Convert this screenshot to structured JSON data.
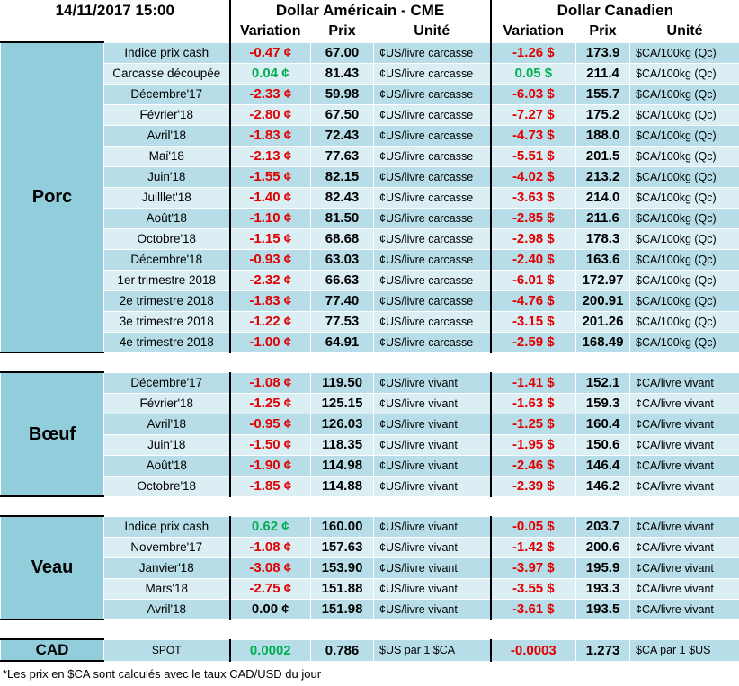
{
  "header": {
    "timestamp": "14/11/2017 15:00",
    "usd_title": "Dollar Américain - CME",
    "cad_title": "Dollar Canadien",
    "columns": [
      "Variation",
      "Prix",
      "Unité",
      "Variation",
      "Prix",
      "Unité"
    ]
  },
  "groups": [
    {
      "label": "Porc",
      "rows": [
        [
          "Indice prix cash",
          "-0.47 ¢",
          "67.00",
          "¢US/livre carcasse",
          "-1.26 $",
          "173.9",
          "$CA/100kg (Qc)"
        ],
        [
          "Carcasse découpée",
          "0.04 ¢",
          "81.43",
          "¢US/livre carcasse",
          "0.05 $",
          "211.4",
          "$CA/100kg (Qc)"
        ],
        [
          "Décembre'17",
          "-2.33 ¢",
          "59.98",
          "¢US/livre carcasse",
          "-6.03 $",
          "155.7",
          "$CA/100kg (Qc)"
        ],
        [
          "Février'18",
          "-2.80 ¢",
          "67.50",
          "¢US/livre carcasse",
          "-7.27 $",
          "175.2",
          "$CA/100kg (Qc)"
        ],
        [
          "Avril'18",
          "-1.83 ¢",
          "72.43",
          "¢US/livre carcasse",
          "-4.73 $",
          "188.0",
          "$CA/100kg (Qc)"
        ],
        [
          "Mai'18",
          "-2.13 ¢",
          "77.63",
          "¢US/livre carcasse",
          "-5.51 $",
          "201.5",
          "$CA/100kg (Qc)"
        ],
        [
          "Juin'18",
          "-1.55 ¢",
          "82.15",
          "¢US/livre carcasse",
          "-4.02 $",
          "213.2",
          "$CA/100kg (Qc)"
        ],
        [
          "Juilllet'18",
          "-1.40 ¢",
          "82.43",
          "¢US/livre carcasse",
          "-3.63 $",
          "214.0",
          "$CA/100kg (Qc)"
        ],
        [
          "Août'18",
          "-1.10 ¢",
          "81.50",
          "¢US/livre carcasse",
          "-2.85 $",
          "211.6",
          "$CA/100kg (Qc)"
        ],
        [
          "Octobre'18",
          "-1.15 ¢",
          "68.68",
          "¢US/livre carcasse",
          "-2.98 $",
          "178.3",
          "$CA/100kg (Qc)"
        ],
        [
          "Décembre'18",
          "-0.93 ¢",
          "63.03",
          "¢US/livre carcasse",
          "-2.40 $",
          "163.6",
          "$CA/100kg (Qc)"
        ],
        [
          "1er trimestre 2018",
          "-2.32 ¢",
          "66.63",
          "¢US/livre carcasse",
          "-6.01 $",
          "172.97",
          "$CA/100kg (Qc)"
        ],
        [
          "2e trimestre 2018",
          "-1.83 ¢",
          "77.40",
          "¢US/livre carcasse",
          "-4.76 $",
          "200.91",
          "$CA/100kg (Qc)"
        ],
        [
          "3e trimestre 2018",
          "-1.22 ¢",
          "77.53",
          "¢US/livre carcasse",
          "-3.15 $",
          "201.26",
          "$CA/100kg (Qc)"
        ],
        [
          "4e trimestre 2018",
          "-1.00 ¢",
          "64.91",
          "¢US/livre carcasse",
          "-2.59 $",
          "168.49",
          "$CA/100kg (Qc)"
        ]
      ]
    },
    {
      "label": "Bœuf",
      "rows": [
        [
          "Décembre'17",
          "-1.08 ¢",
          "119.50",
          "¢US/livre vivant",
          "-1.41 $",
          "152.1",
          "¢CA/livre vivant"
        ],
        [
          "Février'18",
          "-1.25 ¢",
          "125.15",
          "¢US/livre vivant",
          "-1.63 $",
          "159.3",
          "¢CA/livre vivant"
        ],
        [
          "Avril'18",
          "-0.95 ¢",
          "126.03",
          "¢US/livre vivant",
          "-1.25 $",
          "160.4",
          "¢CA/livre vivant"
        ],
        [
          "Juin'18",
          "-1.50 ¢",
          "118.35",
          "¢US/livre vivant",
          "-1.95 $",
          "150.6",
          "¢CA/livre vivant"
        ],
        [
          "Août'18",
          "-1.90 ¢",
          "114.98",
          "¢US/livre vivant",
          "-2.46 $",
          "146.4",
          "¢CA/livre vivant"
        ],
        [
          "Octobre'18",
          "-1.85 ¢",
          "114.88",
          "¢US/livre vivant",
          "-2.39 $",
          "146.2",
          "¢CA/livre vivant"
        ]
      ]
    },
    {
      "label": "Veau",
      "rows": [
        [
          "Indice prix cash",
          "0.62 ¢",
          "160.00",
          "¢US/livre vivant",
          "-0.05 $",
          "203.7",
          "¢CA/livre vivant"
        ],
        [
          "Novembre'17",
          "-1.08 ¢",
          "157.63",
          "¢US/livre vivant",
          "-1.42 $",
          "200.6",
          "¢CA/livre vivant"
        ],
        [
          "Janvier'18",
          "-3.08 ¢",
          "153.90",
          "¢US/livre vivant",
          "-3.97 $",
          "195.9",
          "¢CA/livre vivant"
        ],
        [
          "Mars'18",
          "-2.75 ¢",
          "151.88",
          "¢US/livre vivant",
          "-3.55 $",
          "193.3",
          "¢CA/livre vivant"
        ],
        [
          "Avril'18",
          "0.00 ¢",
          "151.98",
          "¢US/livre vivant",
          "-3.61 $",
          "193.5",
          "¢CA/livre vivant"
        ]
      ]
    },
    {
      "label": "CAD",
      "rows": [
        [
          "SPOT",
          "0.0002",
          "0.786",
          "$US par 1 $CA",
          "-0.0003",
          "1.273",
          "$CA par 1 $US"
        ]
      ]
    }
  ],
  "footnote": "*Les prix en $CA sont calculés avec le taux CAD/USD du jour"
}
